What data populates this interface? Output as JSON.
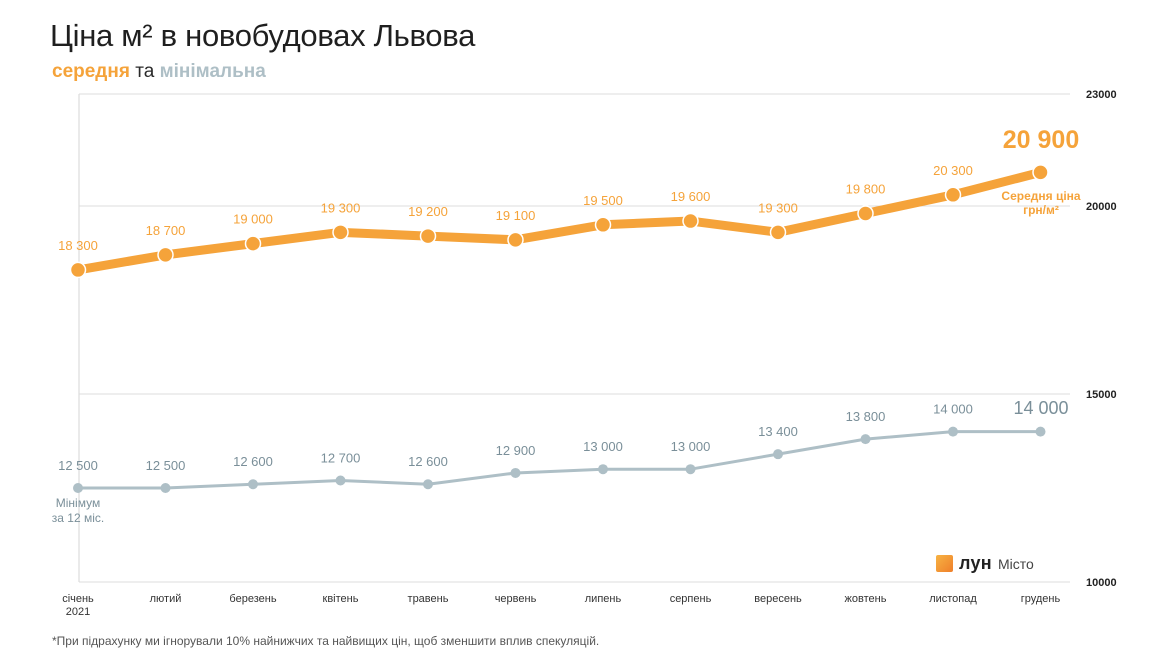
{
  "title": "Ціна м² в новобудовах Львова",
  "subtitle": {
    "avg": "середня",
    "and": "та",
    "min": "мінімальна"
  },
  "brand": {
    "name": "лун",
    "sub": "Місто"
  },
  "footnote": "*При підрахунку ми ігнорували 10% найнижчих та найвищих цін, щоб зменшити вплив спекуляцій.",
  "chart_data": {
    "type": "line",
    "categories": [
      "січень",
      "лютий",
      "березень",
      "квітень",
      "травень",
      "червень",
      "липень",
      "серпень",
      "вересень",
      "жовтень",
      "листопад",
      "грудень"
    ],
    "year_label": "2021",
    "y_tick_labels": [
      "23000",
      "20000",
      "15000",
      "10000"
    ],
    "y_ticks": [
      23000,
      20000,
      15000,
      10000
    ],
    "grid": true,
    "ylim": [
      10000,
      23000
    ],
    "series": [
      {
        "name": "Середня ціна грн/м²",
        "name_lines": [
          "Середня ціна",
          "грн/м²"
        ],
        "values": [
          18300,
          18700,
          19000,
          19300,
          19200,
          19100,
          19500,
          19600,
          19300,
          19800,
          20300,
          20900
        ],
        "labels": [
          "18 300",
          "18 700",
          "19 000",
          "19 300",
          "19 200",
          "19 100",
          "19 500",
          "19 600",
          "19 300",
          "19 800",
          "20 300",
          "20 900"
        ],
        "color": "#f5a33a"
      },
      {
        "name": "Мінімум за 12 міс.",
        "name_lines": [
          "Мінімум",
          "за 12 міс."
        ],
        "values": [
          12500,
          12500,
          12600,
          12700,
          12600,
          12900,
          13000,
          13000,
          13400,
          13800,
          14000,
          14000
        ],
        "labels": [
          "12 500",
          "12 500",
          "12 600",
          "12 700",
          "12 600",
          "12 900",
          "13 000",
          "13 000",
          "13 400",
          "13 800",
          "14 000",
          "14 000"
        ],
        "color": "#aebfc6"
      }
    ]
  }
}
